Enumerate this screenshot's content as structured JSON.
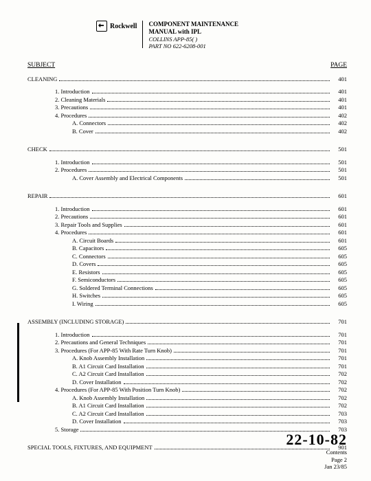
{
  "header": {
    "company": "Rockwell",
    "line1": "COMPONENT MAINTENANCE",
    "line2": "MANUAL with IPL",
    "line3": "COLLINS APP-85( )",
    "line4": "PART NO 622-6208-001"
  },
  "columns": {
    "left": "SUBJECT",
    "right": "PAGE"
  },
  "sections": [
    {
      "title": "CLEANING",
      "page": "401",
      "items": [
        {
          "lvl": 1,
          "label": "1.  Introduction",
          "page": "401"
        },
        {
          "lvl": 1,
          "label": "2.  Cleaning Materials",
          "page": "401"
        },
        {
          "lvl": 1,
          "label": "3.  Precautions",
          "page": "401"
        },
        {
          "lvl": 1,
          "label": "4.  Procedures",
          "page": "402"
        },
        {
          "lvl": 2,
          "label": "A.   Connectors",
          "page": "402"
        },
        {
          "lvl": 2,
          "label": "B.   Cover",
          "page": "402"
        }
      ]
    },
    {
      "title": "CHECK",
      "page": "501",
      "items": [
        {
          "lvl": 1,
          "label": "1.  Introduction",
          "page": "501"
        },
        {
          "lvl": 1,
          "label": "2.  Procedures",
          "page": "501"
        },
        {
          "lvl": 2,
          "label": "A.   Cover Assembly and Electrical Components",
          "page": "501"
        }
      ]
    },
    {
      "title": "REPAIR",
      "page": "601",
      "items": [
        {
          "lvl": 1,
          "label": "1.  Introduction",
          "page": "601"
        },
        {
          "lvl": 1,
          "label": "2.  Precautions",
          "page": "601"
        },
        {
          "lvl": 1,
          "label": "3.  Repair Tools and Supplies",
          "page": "601"
        },
        {
          "lvl": 1,
          "label": "4.  Procedures",
          "page": "601"
        },
        {
          "lvl": 2,
          "label": "A.   Circuit Boards",
          "page": "601"
        },
        {
          "lvl": 2,
          "label": "B.   Capacitors",
          "page": "605"
        },
        {
          "lvl": 2,
          "label": "C.   Connectors",
          "page": "605"
        },
        {
          "lvl": 2,
          "label": "D.   Covers",
          "page": "605"
        },
        {
          "lvl": 2,
          "label": "E.   Resistors",
          "page": "605"
        },
        {
          "lvl": 2,
          "label": "F.   Semiconductors",
          "page": "605"
        },
        {
          "lvl": 2,
          "label": "G.   Soldered Terminal Connections",
          "page": "605"
        },
        {
          "lvl": 2,
          "label": "H.   Switches",
          "page": "605"
        },
        {
          "lvl": 2,
          "label": "I.    Wiring",
          "page": "605"
        }
      ]
    },
    {
      "title": "ASSEMBLY (INCLUDING STORAGE)",
      "page": "701",
      "items": [
        {
          "lvl": 1,
          "label": "1.  Introduction",
          "page": "701"
        },
        {
          "lvl": 1,
          "label": "2.  Precautions and General Techniques",
          "page": "701"
        },
        {
          "lvl": 1,
          "label": "3.  Procedures (For APP-85 With Rate Turn Knob)",
          "page": "701"
        },
        {
          "lvl": 2,
          "label": "A.   Knob Assembly Installation",
          "page": "701"
        },
        {
          "lvl": 2,
          "label": "B.   A1 Circuit Card Installation",
          "page": "701"
        },
        {
          "lvl": 2,
          "label": "C.   A2 Circuit Card Installation",
          "page": "702"
        },
        {
          "lvl": 2,
          "label": "D.   Cover Installation",
          "page": "702"
        },
        {
          "lvl": 1,
          "label": "4.  Procedures (For APP-85 With Position Turn Knob)",
          "page": "702"
        },
        {
          "lvl": 2,
          "label": "A.   Knob Assembly Installation",
          "page": "702"
        },
        {
          "lvl": 2,
          "label": "B.   A1 Circuit Card Installation",
          "page": "702"
        },
        {
          "lvl": 2,
          "label": "C.   A2 Circuit Card Installation",
          "page": "703"
        },
        {
          "lvl": 2,
          "label": "D.   Cover Installation",
          "page": "703"
        },
        {
          "lvl": 1,
          "label": "5.  Storage",
          "page": "703"
        }
      ]
    },
    {
      "title": "SPECIAL TOOLS, FIXTURES, AND EQUIPMENT",
      "page": "901",
      "items": []
    }
  ],
  "footer": {
    "docnum": "22-10-82",
    "line1": "Contents",
    "line2": "Page 2",
    "line3": "Jan 23/85"
  }
}
